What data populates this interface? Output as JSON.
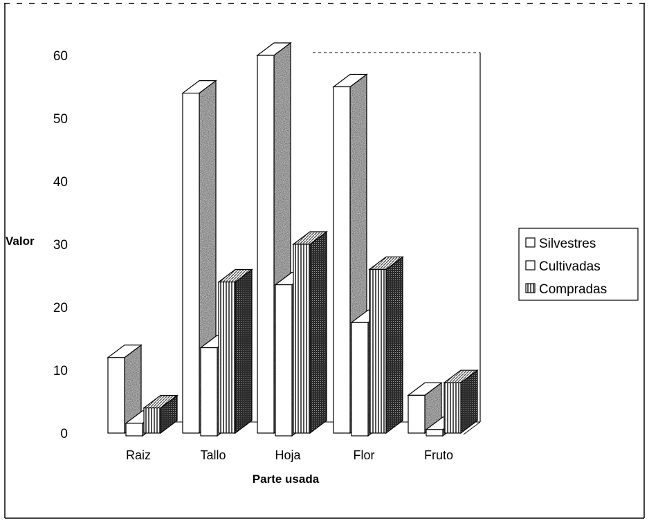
{
  "chart_data": {
    "type": "bar",
    "title": "",
    "xlabel": "Parte usada",
    "ylabel": "Valor",
    "ylim": [
      0,
      60
    ],
    "yticks": [
      0,
      10,
      20,
      30,
      40,
      50,
      60
    ],
    "categories": [
      "Raiz",
      "Tallo",
      "Hoja",
      "Flor",
      "Fruto"
    ],
    "series": [
      {
        "name": "Silvestres",
        "values": [
          12,
          54,
          60,
          55,
          6
        ],
        "color": "#ffffff",
        "side_color": "#c8c8c8"
      },
      {
        "name": "Cultivadas",
        "values": [
          2,
          14,
          24,
          18,
          1
        ],
        "color": "#ffffff",
        "side_color": "#c8c8c8"
      },
      {
        "name": "Compradas",
        "values": [
          4,
          24,
          30,
          26,
          8
        ],
        "color": "#e2e2e2",
        "side_color": "#8e8e8e"
      }
    ],
    "legend_position": "right",
    "grid": false,
    "style": "3d-clustered-column"
  }
}
